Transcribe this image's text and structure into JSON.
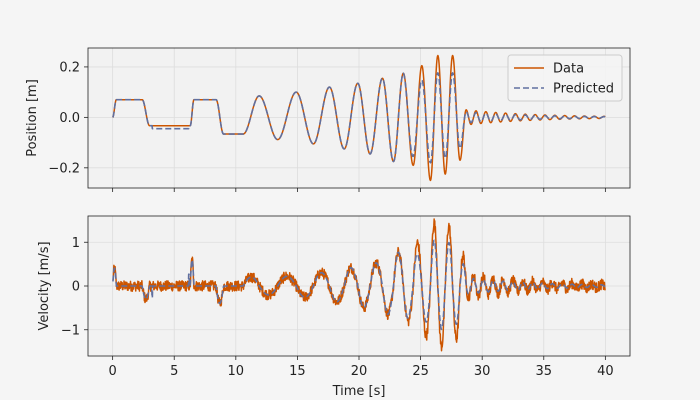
{
  "figure": {
    "background": "#f5f5f5",
    "panel_background": "#f2f2f2"
  },
  "chart_data": [
    {
      "type": "line",
      "ylabel": "Position [m]",
      "xlabel": "",
      "xlim": [
        -2,
        42
      ],
      "ylim": [
        -0.28,
        0.275
      ],
      "xticks": [
        0,
        5,
        10,
        15,
        20,
        25,
        30,
        35,
        40
      ],
      "yticks": [
        -0.2,
        0.0,
        0.2
      ],
      "ytick_labels": [
        "−0.2",
        "0.0",
        "0.2"
      ],
      "grid": true,
      "legend": "top-right",
      "x_range": [
        0,
        40
      ],
      "dwell_segments": [
        {
          "t": [
            0.3,
            2.4
          ],
          "y": 0.07
        },
        {
          "t": [
            3.0,
            6.3
          ],
          "y": -0.033
        },
        {
          "t": [
            6.6,
            8.4
          ],
          "y": 0.07
        },
        {
          "t": [
            9.0,
            10.6
          ],
          "y": -0.066
        }
      ],
      "oscillation_peaks": [
        {
          "t": 11.9,
          "y": 0.085
        },
        {
          "t": 13.4,
          "y": -0.088
        },
        {
          "t": 14.9,
          "y": 0.1
        },
        {
          "t": 16.3,
          "y": -0.105
        },
        {
          "t": 17.6,
          "y": 0.12
        },
        {
          "t": 18.8,
          "y": -0.125
        },
        {
          "t": 19.9,
          "y": 0.135
        },
        {
          "t": 20.9,
          "y": -0.145
        },
        {
          "t": 21.9,
          "y": 0.155
        },
        {
          "t": 22.8,
          "y": -0.175
        },
        {
          "t": 23.6,
          "y": 0.175
        },
        {
          "t": 24.4,
          "y": -0.19
        },
        {
          "t": 25.1,
          "y": 0.205
        },
        {
          "t": 25.8,
          "y": -0.25
        },
        {
          "t": 26.4,
          "y": 0.245
        },
        {
          "t": 27.0,
          "y": -0.225
        },
        {
          "t": 27.6,
          "y": 0.245
        },
        {
          "t": 28.2,
          "y": -0.17
        },
        {
          "t": 28.7,
          "y": 0.03
        }
      ],
      "decay": {
        "start": 28.7,
        "amplitude": 0.03,
        "period": 0.8,
        "end_amplitude": 0.004
      },
      "series": [
        {
          "name": "Data",
          "color": "#cc5500",
          "style": "solid",
          "noise": 0
        },
        {
          "name": "Predicted",
          "color": "#6070a0",
          "style": "dashed",
          "scale": 0.72,
          "scale_from": 24.8
        }
      ]
    },
    {
      "type": "line",
      "ylabel": "Velocity [m/s]",
      "xlabel": "Time [s]",
      "xlim": [
        -2,
        42
      ],
      "ylim": [
        -1.6,
        1.6
      ],
      "xticks": [
        0,
        5,
        10,
        15,
        20,
        25,
        30,
        35,
        40
      ],
      "yticks": [
        -1,
        0,
        1
      ],
      "ytick_labels": [
        "−1",
        "0",
        "1"
      ],
      "grid": true,
      "x_range": [
        0,
        40
      ],
      "peak_amplitude": 1.45,
      "noise_amplitude": 0.12,
      "series": [
        {
          "name": "Data",
          "color": "#cc5500",
          "style": "solid"
        },
        {
          "name": "Predicted",
          "color": "#6070a0",
          "style": "dashed"
        }
      ]
    }
  ]
}
